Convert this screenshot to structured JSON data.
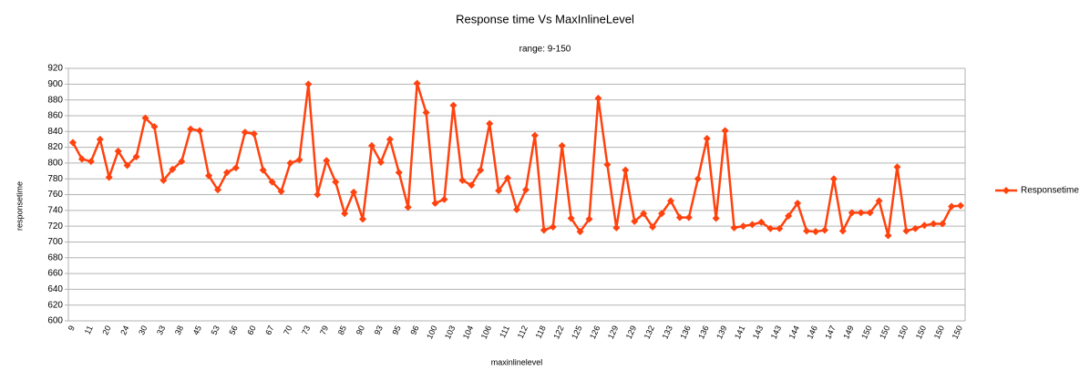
{
  "chart_data": {
    "type": "line",
    "title": "Response time Vs MaxInlineLevel",
    "subtitle": "range: 9-150",
    "x_label": "maxinlinelevel",
    "y_label": "responsetime",
    "categories": [
      "9",
      null,
      "11",
      null,
      "20",
      null,
      "24",
      null,
      "30",
      null,
      "33",
      null,
      "38",
      null,
      "45",
      null,
      "53",
      null,
      "56",
      null,
      "60",
      null,
      "67",
      null,
      "70",
      null,
      "73",
      null,
      "79",
      null,
      "85",
      null,
      "90",
      null,
      "93",
      null,
      "95",
      null,
      "96",
      null,
      "100",
      null,
      "103",
      null,
      "104",
      null,
      "106",
      null,
      "111",
      null,
      "112",
      null,
      "118",
      null,
      "122",
      null,
      "125",
      null,
      "126",
      null,
      "129",
      null,
      "129",
      null,
      "132",
      null,
      "133",
      null,
      "136",
      null,
      "136",
      null,
      "139",
      null,
      "141",
      null,
      "143",
      null,
      "143",
      null,
      "144",
      null,
      "146",
      null,
      "147",
      null,
      "149",
      null,
      "150",
      null,
      "150",
      null,
      "150",
      null,
      "150",
      null,
      "150",
      null,
      "150"
    ],
    "series": [
      {
        "name": "Responsetime",
        "color": "#ff420e",
        "values": [
          826,
          805,
          802,
          830,
          782,
          815,
          797,
          808,
          857,
          846,
          778,
          792,
          802,
          843,
          841,
          784,
          766,
          788,
          794,
          839,
          837,
          791,
          776,
          764,
          800,
          804,
          900,
          760,
          803,
          776,
          736,
          763,
          729,
          822,
          801,
          830,
          788,
          744,
          901,
          864,
          749,
          754,
          873,
          778,
          772,
          791,
          850,
          765,
          781,
          741,
          766,
          835,
          715,
          719,
          822,
          730,
          713,
          729,
          882,
          798,
          718,
          791,
          726,
          736,
          719,
          736,
          752,
          731,
          731,
          780,
          831,
          730,
          841,
          718,
          720,
          722,
          725,
          717,
          717,
          733,
          749,
          714,
          713,
          715,
          780,
          714,
          737,
          737,
          737,
          752,
          708,
          795,
          714,
          717,
          721,
          723,
          723,
          745,
          746
        ]
      }
    ],
    "ylim": [
      600,
      920
    ],
    "yticks": [
      600,
      620,
      640,
      660,
      680,
      700,
      720,
      740,
      760,
      780,
      800,
      820,
      840,
      860,
      880,
      900,
      920
    ],
    "grid": true,
    "legend": "right"
  }
}
